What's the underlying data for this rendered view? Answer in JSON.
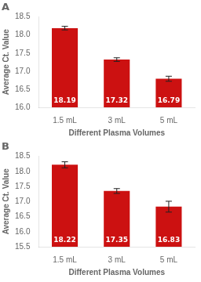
{
  "chart_data": [
    {
      "type": "bar",
      "title": "A",
      "categories": [
        "1.5 mL",
        "3 mL",
        "5 mL"
      ],
      "values": [
        18.19,
        17.32,
        16.79
      ],
      "errors": [
        0.05,
        0.05,
        0.07
      ],
      "color": "#cc1111",
      "xlabel": "Different Plasma Volumes",
      "ylabel": "Average Ct. Value",
      "ylim": [
        16.0,
        18.5
      ],
      "yticks": [
        {
          "value": 16.0,
          "label": "16.0"
        },
        16.5,
        {
          "value": 17.0,
          "label": "17.0"
        },
        17.5,
        {
          "value": 18.0,
          "label": "18.0"
        },
        18.5
      ],
      "grid": false,
      "data_labels": true
    },
    {
      "type": "bar",
      "title": "B",
      "categories": [
        "1.5 mL",
        "3 mL",
        "5 mL"
      ],
      "values": [
        18.22,
        17.35,
        16.83
      ],
      "errors": [
        0.1,
        0.08,
        0.18
      ],
      "color": "#cc1111",
      "xlabel": "Different Plasma Volumes",
      "ylabel": "Average Ct. Value",
      "ylim": [
        15.5,
        18.5
      ],
      "yticks": [
        15.5,
        {
          "value": 16.0,
          "label": "16.0"
        },
        16.5,
        {
          "value": 17.0,
          "label": "17.0"
        },
        17.5,
        {
          "value": 18.0,
          "label": "18.0"
        },
        18.5
      ],
      "grid": false,
      "data_labels": true
    }
  ]
}
